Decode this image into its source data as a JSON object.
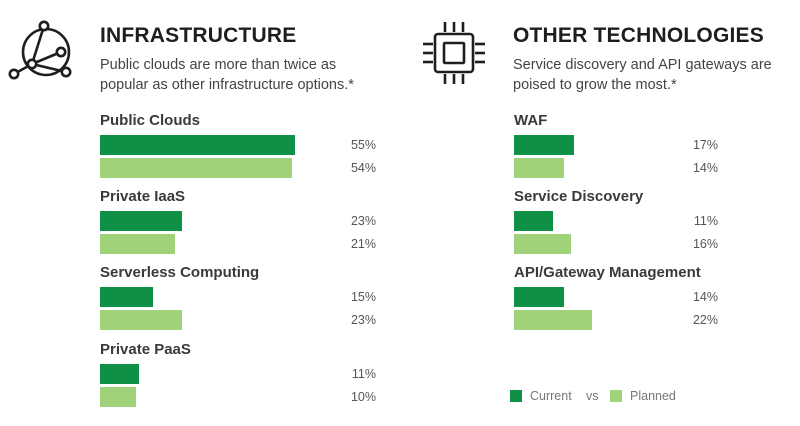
{
  "colors": {
    "current": "#0f9047",
    "planned": "#9fd27a"
  },
  "chart_data": [
    {
      "type": "bar",
      "title": "INFRASTRUCTURE",
      "subtitle_lines": [
        "Public clouds are more than twice as",
        "popular as other infrastructure options.*"
      ],
      "icon": "network-globe-icon",
      "categories": [
        "Public Clouds",
        "Private IaaS",
        "Serverless Computing",
        "Private PaaS"
      ],
      "series": [
        {
          "name": "Current",
          "values": [
            55,
            23,
            15,
            11
          ]
        },
        {
          "name": "Planned",
          "values": [
            54,
            21,
            23,
            10
          ]
        }
      ],
      "value_labels": [
        [
          "55%",
          "54%"
        ],
        [
          "23%",
          "21%"
        ],
        [
          "15%",
          "23%"
        ],
        [
          "11%",
          "10%"
        ]
      ],
      "orientation": "horizontal",
      "xlim": [
        0,
        100
      ]
    },
    {
      "type": "bar",
      "title": "OTHER TECHNOLOGIES",
      "subtitle_lines": [
        "Service discovery and API gateways are",
        "poised to grow the most.*"
      ],
      "icon": "cpu-chip-icon",
      "categories": [
        "WAF",
        "Service Discovery",
        "API/Gateway Management"
      ],
      "series": [
        {
          "name": "Current",
          "values": [
            17,
            11,
            14
          ]
        },
        {
          "name": "Planned",
          "values": [
            14,
            16,
            22
          ]
        }
      ],
      "value_labels": [
        [
          "17%",
          "14%"
        ],
        [
          "11%",
          "16%"
        ],
        [
          "14%",
          "22%"
        ]
      ],
      "orientation": "horizontal",
      "xlim": [
        0,
        100
      ]
    }
  ],
  "legend": {
    "current": "Current",
    "vs": "vs",
    "planned": "Planned"
  }
}
